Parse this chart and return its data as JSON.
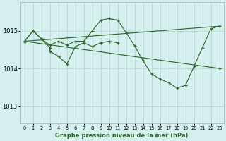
{
  "background_color": "#d6f0f0",
  "grid_color": "#c0d8d8",
  "line_color": "#2d6a2d",
  "title": "Graphe pression niveau de la mer (hPa)",
  "xlim": [
    -0.5,
    23.5
  ],
  "ylim": [
    1012.55,
    1015.75
  ],
  "yticks": [
    1013,
    1014,
    1015
  ],
  "xticks": [
    0,
    1,
    2,
    3,
    4,
    5,
    6,
    7,
    8,
    9,
    10,
    11,
    12,
    13,
    14,
    15,
    16,
    17,
    18,
    19,
    20,
    21,
    22,
    23
  ],
  "series_zigzag1": {
    "x": [
      0,
      1,
      2,
      3,
      4,
      5,
      6,
      7,
      8,
      9,
      10,
      11,
      12,
      13,
      14,
      15,
      16,
      17,
      18,
      19,
      20,
      21,
      22,
      23
    ],
    "y": [
      1014.72,
      1015.0,
      1014.78,
      1014.62,
      1014.72,
      1014.62,
      1014.72,
      1014.72,
      1015.0,
      1015.28,
      1015.32,
      1015.28,
      1014.95,
      1014.6,
      1014.2,
      1013.85,
      1013.72,
      1013.62,
      1013.48,
      1013.55,
      1014.05,
      1014.55,
      1015.05,
      1015.12
    ]
  },
  "series_zigzag2": {
    "x": [
      0,
      1,
      2,
      3,
      3,
      4,
      5,
      6,
      7,
      8,
      9,
      10,
      11
    ],
    "y": [
      1014.72,
      1015.0,
      1014.78,
      1014.55,
      1014.45,
      1014.32,
      1014.12,
      1014.58,
      1014.68,
      1014.58,
      1014.68,
      1014.72,
      1014.68
    ]
  },
  "line_up": {
    "x": [
      0,
      23
    ],
    "y": [
      1014.72,
      1015.12
    ]
  },
  "line_down": {
    "x": [
      0,
      23
    ],
    "y": [
      1014.72,
      1014.0
    ]
  }
}
